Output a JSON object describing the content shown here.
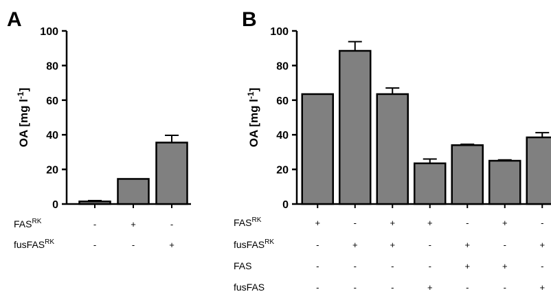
{
  "chart_data": [
    {
      "type": "bar",
      "panel": "A",
      "ylabel": {
        "main": "OA [mg l",
        "sup": "-1",
        "close": "]"
      },
      "ylim": [
        0,
        100
      ],
      "yticks": [
        "0",
        "20",
        "40",
        "60",
        "80",
        "100"
      ],
      "values": [
        1.5,
        14.5,
        35.5
      ],
      "errors": [
        0.5,
        0,
        4.2
      ],
      "bar_color": "#808080",
      "condition_rows": [
        {
          "label": "FAS",
          "sup": "RK",
          "marks": [
            "-",
            "+",
            "-"
          ]
        },
        {
          "label": "fusFAS",
          "sup": "RK",
          "marks": [
            "-",
            "-",
            "+"
          ]
        }
      ]
    },
    {
      "type": "bar",
      "panel": "B",
      "ylabel": {
        "main": "OA [mg l",
        "sup": "-1",
        "close": "]"
      },
      "ylim": [
        0,
        100
      ],
      "yticks": [
        "0",
        "20",
        "40",
        "60",
        "80",
        "100"
      ],
      "values": [
        63.5,
        88.5,
        63.5,
        23.5,
        34,
        25,
        38.5
      ],
      "errors": [
        0,
        5.3,
        3.5,
        2.5,
        0.5,
        0.5,
        2.7
      ],
      "bar_color": "#808080",
      "condition_rows": [
        {
          "label": "FAS",
          "sup": "RK",
          "marks": [
            "+",
            "-",
            "+",
            "+",
            "-",
            "+",
            "-"
          ]
        },
        {
          "label": "fusFAS",
          "sup": "RK",
          "marks": [
            "-",
            "+",
            "+",
            "-",
            "+",
            "-",
            "+"
          ]
        },
        {
          "label": "FAS",
          "sup": "",
          "marks": [
            "-",
            "-",
            "-",
            "-",
            "+",
            "+",
            "-"
          ]
        },
        {
          "label": "fusFAS",
          "sup": "",
          "marks": [
            "-",
            "-",
            "-",
            "+",
            "-",
            "-",
            "+"
          ]
        }
      ]
    }
  ]
}
